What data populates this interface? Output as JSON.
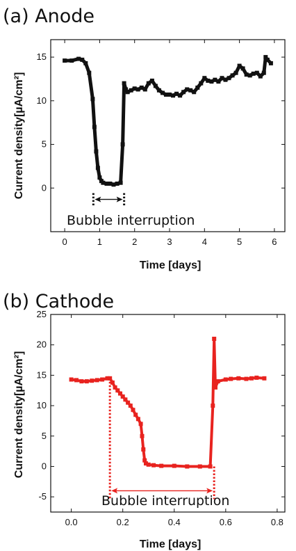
{
  "colors": {
    "anode": "#111111",
    "cathode": "#e8231f"
  },
  "chart_data": [
    {
      "type": "scatter",
      "title": "(a) Anode",
      "xlabel": "Time [days]",
      "ylabel": "Current density[µA/cm²]",
      "xlim": [
        -0.4,
        6.3
      ],
      "ylim": [
        -5,
        17
      ],
      "xticks": [
        "0",
        "1",
        "2",
        "3",
        "4",
        "5",
        "6"
      ],
      "yticks": [
        "0",
        "5",
        "10",
        "15"
      ],
      "annotation": "Bubble interruption",
      "interruption": {
        "start": 0.82,
        "end": 1.7,
        "y": -1.3
      },
      "series": [
        {
          "color": "#111111",
          "x": [
            0.0,
            0.2,
            0.4,
            0.5,
            0.6,
            0.7,
            0.8,
            0.85,
            0.9,
            0.95,
            1.0,
            1.05,
            1.1,
            1.2,
            1.3,
            1.4,
            1.5,
            1.6,
            1.66,
            1.7,
            1.75,
            1.8,
            1.9,
            2.0,
            2.1,
            2.2,
            2.3,
            2.4,
            2.5,
            2.6,
            2.7,
            2.8,
            2.9,
            3.0,
            3.1,
            3.2,
            3.3,
            3.4,
            3.5,
            3.6,
            3.7,
            3.8,
            3.9,
            4.0,
            4.1,
            4.2,
            4.3,
            4.4,
            4.5,
            4.6,
            4.7,
            4.8,
            4.9,
            5.0,
            5.1,
            5.2,
            5.3,
            5.4,
            5.5,
            5.6,
            5.7,
            5.75,
            5.8,
            5.9
          ],
          "y": [
            14.6,
            14.6,
            14.8,
            14.7,
            14.3,
            13.2,
            10.2,
            7.0,
            4.2,
            2.3,
            1.2,
            0.8,
            0.6,
            0.5,
            0.5,
            0.4,
            0.5,
            0.6,
            5.0,
            12.0,
            11.3,
            11.0,
            11.2,
            11.4,
            11.3,
            11.5,
            11.3,
            12.0,
            12.3,
            11.7,
            11.2,
            10.9,
            10.7,
            10.7,
            10.6,
            10.8,
            10.6,
            11.0,
            11.3,
            11.2,
            11.0,
            11.5,
            12.0,
            12.6,
            12.3,
            12.2,
            12.4,
            12.2,
            12.6,
            12.4,
            12.6,
            12.9,
            13.2,
            14.0,
            13.7,
            13.0,
            12.9,
            13.1,
            13.2,
            12.8,
            13.2,
            15.0,
            14.7,
            14.3
          ]
        }
      ]
    },
    {
      "type": "scatter",
      "title": "(b) Cathode",
      "xlabel": "Time [days]",
      "ylabel": "Current density[µA/cm²]",
      "xlim": [
        -0.08,
        0.83
      ],
      "ylim": [
        -7.5,
        25
      ],
      "xticks": [
        "0.0",
        "0.2",
        "0.4",
        "0.6",
        "0.8"
      ],
      "yticks": [
        "-5",
        "0",
        "5",
        "10",
        "15",
        "20",
        "25"
      ],
      "annotation": "Bubble interruption",
      "interruption": {
        "start": 0.15,
        "end": 0.555,
        "y": -4.0
      },
      "series": [
        {
          "color": "#e8231f",
          "x": [
            0.0,
            0.02,
            0.04,
            0.06,
            0.08,
            0.1,
            0.12,
            0.14,
            0.15,
            0.16,
            0.17,
            0.18,
            0.19,
            0.2,
            0.21,
            0.22,
            0.23,
            0.24,
            0.25,
            0.26,
            0.27,
            0.275,
            0.28,
            0.285,
            0.29,
            0.3,
            0.32,
            0.35,
            0.4,
            0.45,
            0.5,
            0.54,
            0.55,
            0.555,
            0.56,
            0.57,
            0.6,
            0.62,
            0.65,
            0.68,
            0.7,
            0.72,
            0.75
          ],
          "y": [
            14.3,
            14.2,
            14.0,
            14.0,
            14.1,
            14.2,
            14.3,
            14.5,
            14.5,
            13.8,
            13.0,
            12.5,
            12.0,
            11.5,
            11.0,
            10.5,
            10.0,
            9.3,
            8.5,
            7.8,
            7.0,
            5.0,
            2.8,
            1.0,
            0.5,
            0.3,
            0.2,
            0.1,
            0.1,
            0.0,
            0.0,
            0.0,
            10.0,
            21.0,
            13.0,
            14.0,
            14.3,
            14.4,
            14.5,
            14.4,
            14.5,
            14.6,
            14.5
          ]
        }
      ]
    }
  ]
}
